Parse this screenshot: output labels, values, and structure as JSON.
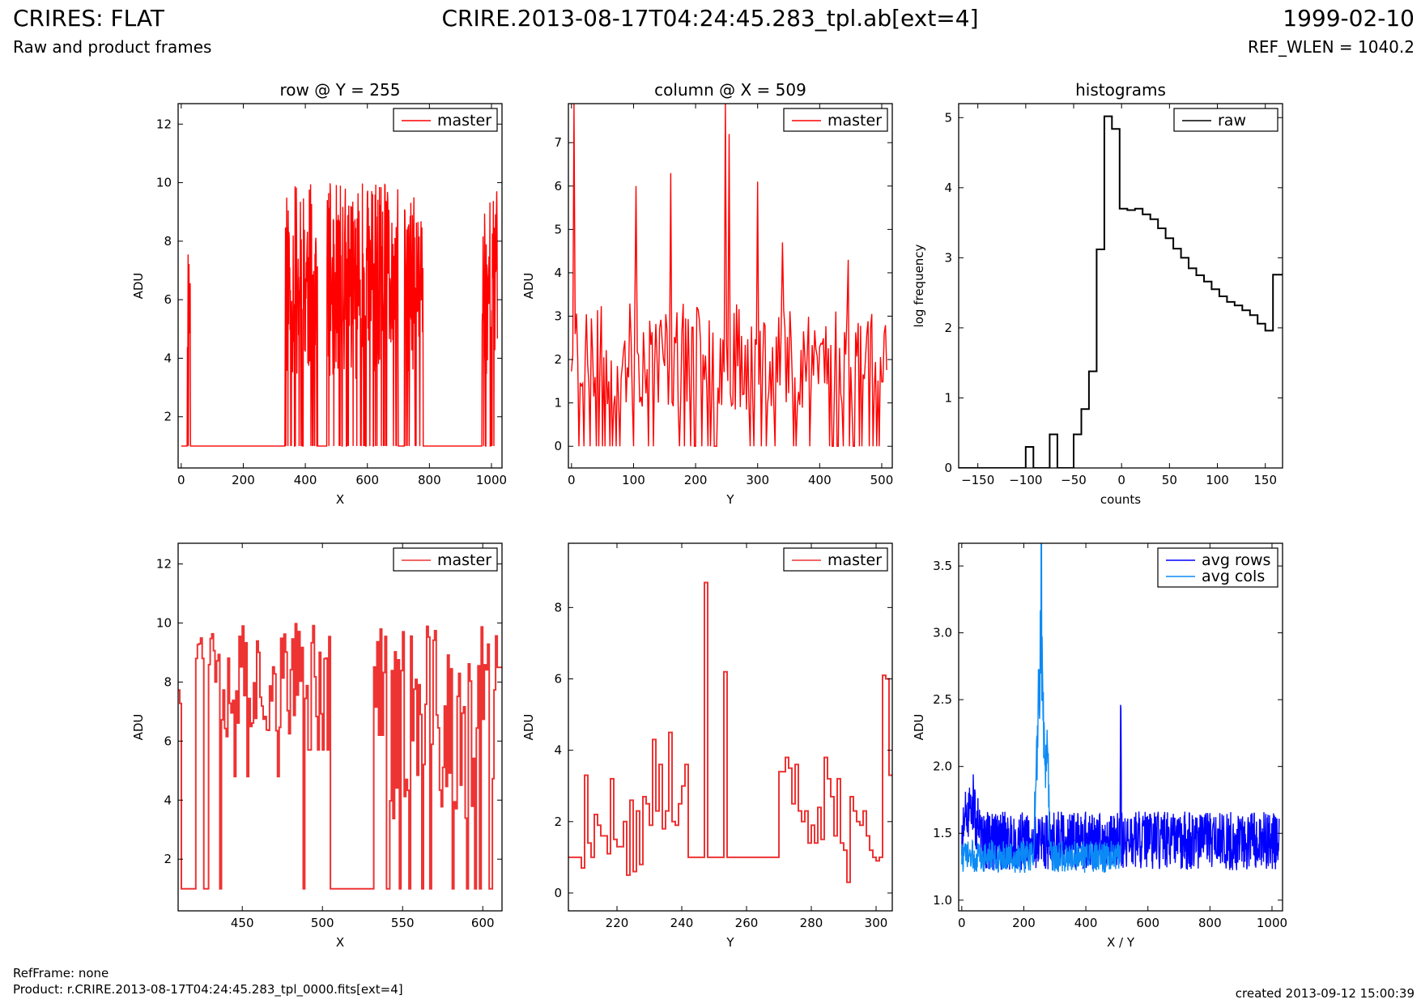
{
  "header": {
    "title_left": "CRIRES: FLAT",
    "subtitle_left": "Raw and product frames",
    "title_center": "CRIRE.2013-08-17T04:24:45.283_tpl.ab[ext=4]",
    "title_right": "1999-02-10",
    "subtitle_right": "REF_WLEN = 1040.2"
  },
  "footer": {
    "refframe": "RefFrame: none",
    "product": "Product: r.CRIRE.2013-08-17T04:24:45.283_tpl_0000.fits[ext=4]",
    "created": "created 2013-09-12 15:00:39"
  },
  "colors": {
    "master": "#ff0000",
    "master_zoom": "#ee3333",
    "raw": "#000000",
    "avg_rows": "#0000ff",
    "avg_cols": "#0b8af5"
  },
  "chart_data": [
    {
      "id": "row",
      "type": "line",
      "title": "row @ Y = 255",
      "xlabel": "X",
      "ylabel": "ADU",
      "xlim": [
        -10,
        1034
      ],
      "ylim": [
        0.25,
        12.7
      ],
      "xticks": [
        0,
        200,
        400,
        600,
        800,
        1000
      ],
      "yticks": [
        2,
        4,
        6,
        8,
        10,
        12
      ],
      "legend": "top-right",
      "step": false,
      "series": [
        {
          "name": "master",
          "color": "#ff0000",
          "seed": 11,
          "segments": [
            [
              0,
              20,
              1,
              1
            ],
            [
              20,
              30,
              1,
              8.4
            ],
            [
              30,
              335,
              1,
              1
            ],
            [
              335,
              440,
              1,
              10
            ],
            [
              440,
              470,
              1,
              1
            ],
            [
              470,
              700,
              1,
              10
            ],
            [
              700,
              720,
              1,
              1
            ],
            [
              720,
              780,
              1,
              9.5
            ],
            [
              780,
              970,
              1,
              1
            ],
            [
              970,
              1020,
              1,
              9.8
            ]
          ]
        }
      ]
    },
    {
      "id": "column",
      "type": "line",
      "title": "column @ X = 509",
      "xlabel": "Y",
      "ylabel": "ADU",
      "xlim": [
        -5,
        517
      ],
      "ylim": [
        -0.5,
        7.9
      ],
      "xticks": [
        0,
        100,
        200,
        300,
        400,
        500
      ],
      "yticks": [
        0,
        1,
        2,
        3,
        4,
        5,
        6,
        7
      ],
      "legend": "top-right",
      "step": false,
      "series": [
        {
          "name": "master",
          "color": "#ff0000",
          "seed": 23,
          "segments": [
            [
              0,
              510,
              0,
              3.3
            ]
          ],
          "spikes": [
            [
              3,
              7.9
            ],
            [
              103,
              6.0
            ],
            [
              160,
              6.3
            ],
            [
              248,
              7.9
            ],
            [
              253,
              7.2
            ],
            [
              300,
              6.1
            ],
            [
              340,
              4.7
            ],
            [
              445,
              4.3
            ]
          ]
        }
      ]
    },
    {
      "id": "histograms",
      "type": "line",
      "title": "histograms",
      "xlabel": "counts",
      "ylabel": "log frequency",
      "xlim": [
        -170,
        168
      ],
      "ylim": [
        0,
        5.2
      ],
      "xticks": [
        -150,
        -100,
        -50,
        0,
        50,
        100,
        150
      ],
      "yticks": [
        0,
        1,
        2,
        3,
        4,
        5
      ],
      "legend": "top-right",
      "step": true,
      "series": [
        {
          "name": "raw",
          "color": "#000000",
          "x": [
            -170,
            -100,
            -92,
            -75,
            -67,
            -50,
            -42,
            -34,
            -26,
            -18,
            -10,
            -2,
            6,
            14,
            22,
            30,
            38,
            46,
            54,
            62,
            70,
            78,
            86,
            94,
            102,
            110,
            118,
            126,
            134,
            142,
            150,
            158,
            168
          ],
          "y": [
            0,
            0.3,
            0,
            0.48,
            0,
            0.48,
            0.84,
            1.38,
            3.12,
            5.02,
            4.84,
            3.7,
            3.68,
            3.7,
            3.62,
            3.55,
            3.42,
            3.28,
            3.13,
            3.0,
            2.85,
            2.75,
            2.66,
            2.55,
            2.45,
            2.37,
            2.32,
            2.25,
            2.18,
            2.06,
            1.96,
            2.76,
            2.76
          ]
        }
      ]
    },
    {
      "id": "row-zoom",
      "type": "line",
      "xlabel": "X",
      "ylabel": "ADU",
      "xlim": [
        410,
        612
      ],
      "ylim": [
        0.25,
        12.7
      ],
      "xticks": [
        450,
        500,
        550,
        600
      ],
      "yticks": [
        2,
        4,
        6,
        8,
        10,
        12
      ],
      "legend": "top-right",
      "step": true,
      "series": [
        {
          "name": "master",
          "color": "#ee3333",
          "seed": 37,
          "segments": [
            [
              410,
              412,
              7,
              8
            ],
            [
              412,
              421,
              1,
              1
            ],
            [
              421,
              426,
              8.8,
              9.8
            ],
            [
              426,
              429,
              1,
              1
            ],
            [
              429,
              436,
              8,
              9.8
            ],
            [
              436,
              437,
              1,
              1
            ],
            [
              437,
              488,
              4.8,
              10
            ],
            [
              488,
              489,
              1,
              1
            ],
            [
              489,
              505,
              5.7,
              10
            ],
            [
              505,
              532,
              1,
              1
            ],
            [
              532,
              540,
              6.2,
              9.8
            ],
            [
              540,
              542,
              1,
              1
            ],
            [
              542,
              609,
              1,
              10
            ],
            [
              609,
              612,
              8.5,
              8.5
            ]
          ]
        }
      ]
    },
    {
      "id": "column-zoom",
      "type": "line",
      "xlabel": "Y",
      "ylabel": "ADU",
      "xlim": [
        205,
        305
      ],
      "ylim": [
        -0.5,
        9.8
      ],
      "xticks": [
        220,
        240,
        260,
        280,
        300
      ],
      "yticks": [
        0,
        2,
        4,
        6,
        8
      ],
      "legend": "top-right",
      "step": true,
      "series": [
        {
          "name": "master",
          "color": "#ee3333",
          "x": [
            205,
            209,
            210,
            211,
            212,
            213,
            214,
            215,
            216,
            217,
            218,
            219,
            220,
            221,
            222,
            223,
            224,
            225,
            226,
            227,
            228,
            229,
            230,
            231,
            232,
            233,
            234,
            235,
            236,
            237,
            238,
            239,
            240,
            241,
            242,
            243,
            244,
            245,
            246,
            247,
            248,
            249,
            250,
            251,
            252,
            253,
            254,
            255,
            256,
            257,
            258,
            259,
            260,
            261,
            262,
            263,
            264,
            265,
            266,
            267,
            268,
            269,
            270,
            271,
            272,
            273,
            274,
            275,
            276,
            277,
            278,
            279,
            280,
            281,
            282,
            283,
            284,
            285,
            286,
            287,
            288,
            289,
            290,
            291,
            292,
            293,
            294,
            295,
            296,
            297,
            298,
            299,
            300,
            301,
            302,
            303,
            304
          ],
          "y": [
            1,
            0.7,
            3.3,
            1.4,
            1,
            2.2,
            1.9,
            1.6,
            1.6,
            1.1,
            3.2,
            1.5,
            1.3,
            1.3,
            2.0,
            0.5,
            2.6,
            0.6,
            2.3,
            0.8,
            2.7,
            2.5,
            1.9,
            4.3,
            2.3,
            3.6,
            1.8,
            2.3,
            4.5,
            2.0,
            1.9,
            2.5,
            3.0,
            3.6,
            1.0,
            1.0,
            1.0,
            1.0,
            1.0,
            8.7,
            1.0,
            1.0,
            1.0,
            1.0,
            1.0,
            6.2,
            1.0,
            1.0,
            1.0,
            1.0,
            1.0,
            1.0,
            1.0,
            1.0,
            1.0,
            1.0,
            1.0,
            1.0,
            1.0,
            1.0,
            1.0,
            1.0,
            3.4,
            3.4,
            3.8,
            3.5,
            2.5,
            3.6,
            2.3,
            2.0,
            2.3,
            1.4,
            1.9,
            1.4,
            2.4,
            1.5,
            3.8,
            3.2,
            2.7,
            1.6,
            3.2,
            1.4,
            1.2,
            0.3,
            2.7,
            2.3,
            2.0,
            1.9,
            2.3,
            1.6,
            1.2,
            1.0,
            0.9,
            1.0,
            6.1,
            6.0,
            3.3
          ],
          "spikes": []
        }
      ]
    },
    {
      "id": "averages",
      "type": "line",
      "xlabel": "X / Y",
      "ylabel": "ADU",
      "xlim": [
        -10,
        1034
      ],
      "ylim": [
        0.92,
        3.67
      ],
      "xticks": [
        0,
        200,
        400,
        600,
        800,
        1000
      ],
      "yticks": [
        1.0,
        1.5,
        2.0,
        2.5,
        3.0,
        3.5
      ],
      "legend": "top-right",
      "step": false,
      "series": [
        {
          "name": "avg rows",
          "color": "#0000ff",
          "seed": 51,
          "n": 1024,
          "base": 1.4,
          "amp": 0.22,
          "features": [
            [
              0,
              60,
              0.4
            ],
            [
              510,
              515,
              1.7
            ]
          ]
        },
        {
          "name": "avg cols",
          "color": "#0b8af5",
          "seed": 73,
          "n": 512,
          "base": 1.3,
          "amp": 0.12,
          "features": [
            [
              230,
              280,
              2.0
            ],
            [
              255,
              258,
              2.3
            ],
            [
              270,
              285,
              0.9
            ]
          ]
        }
      ]
    }
  ]
}
